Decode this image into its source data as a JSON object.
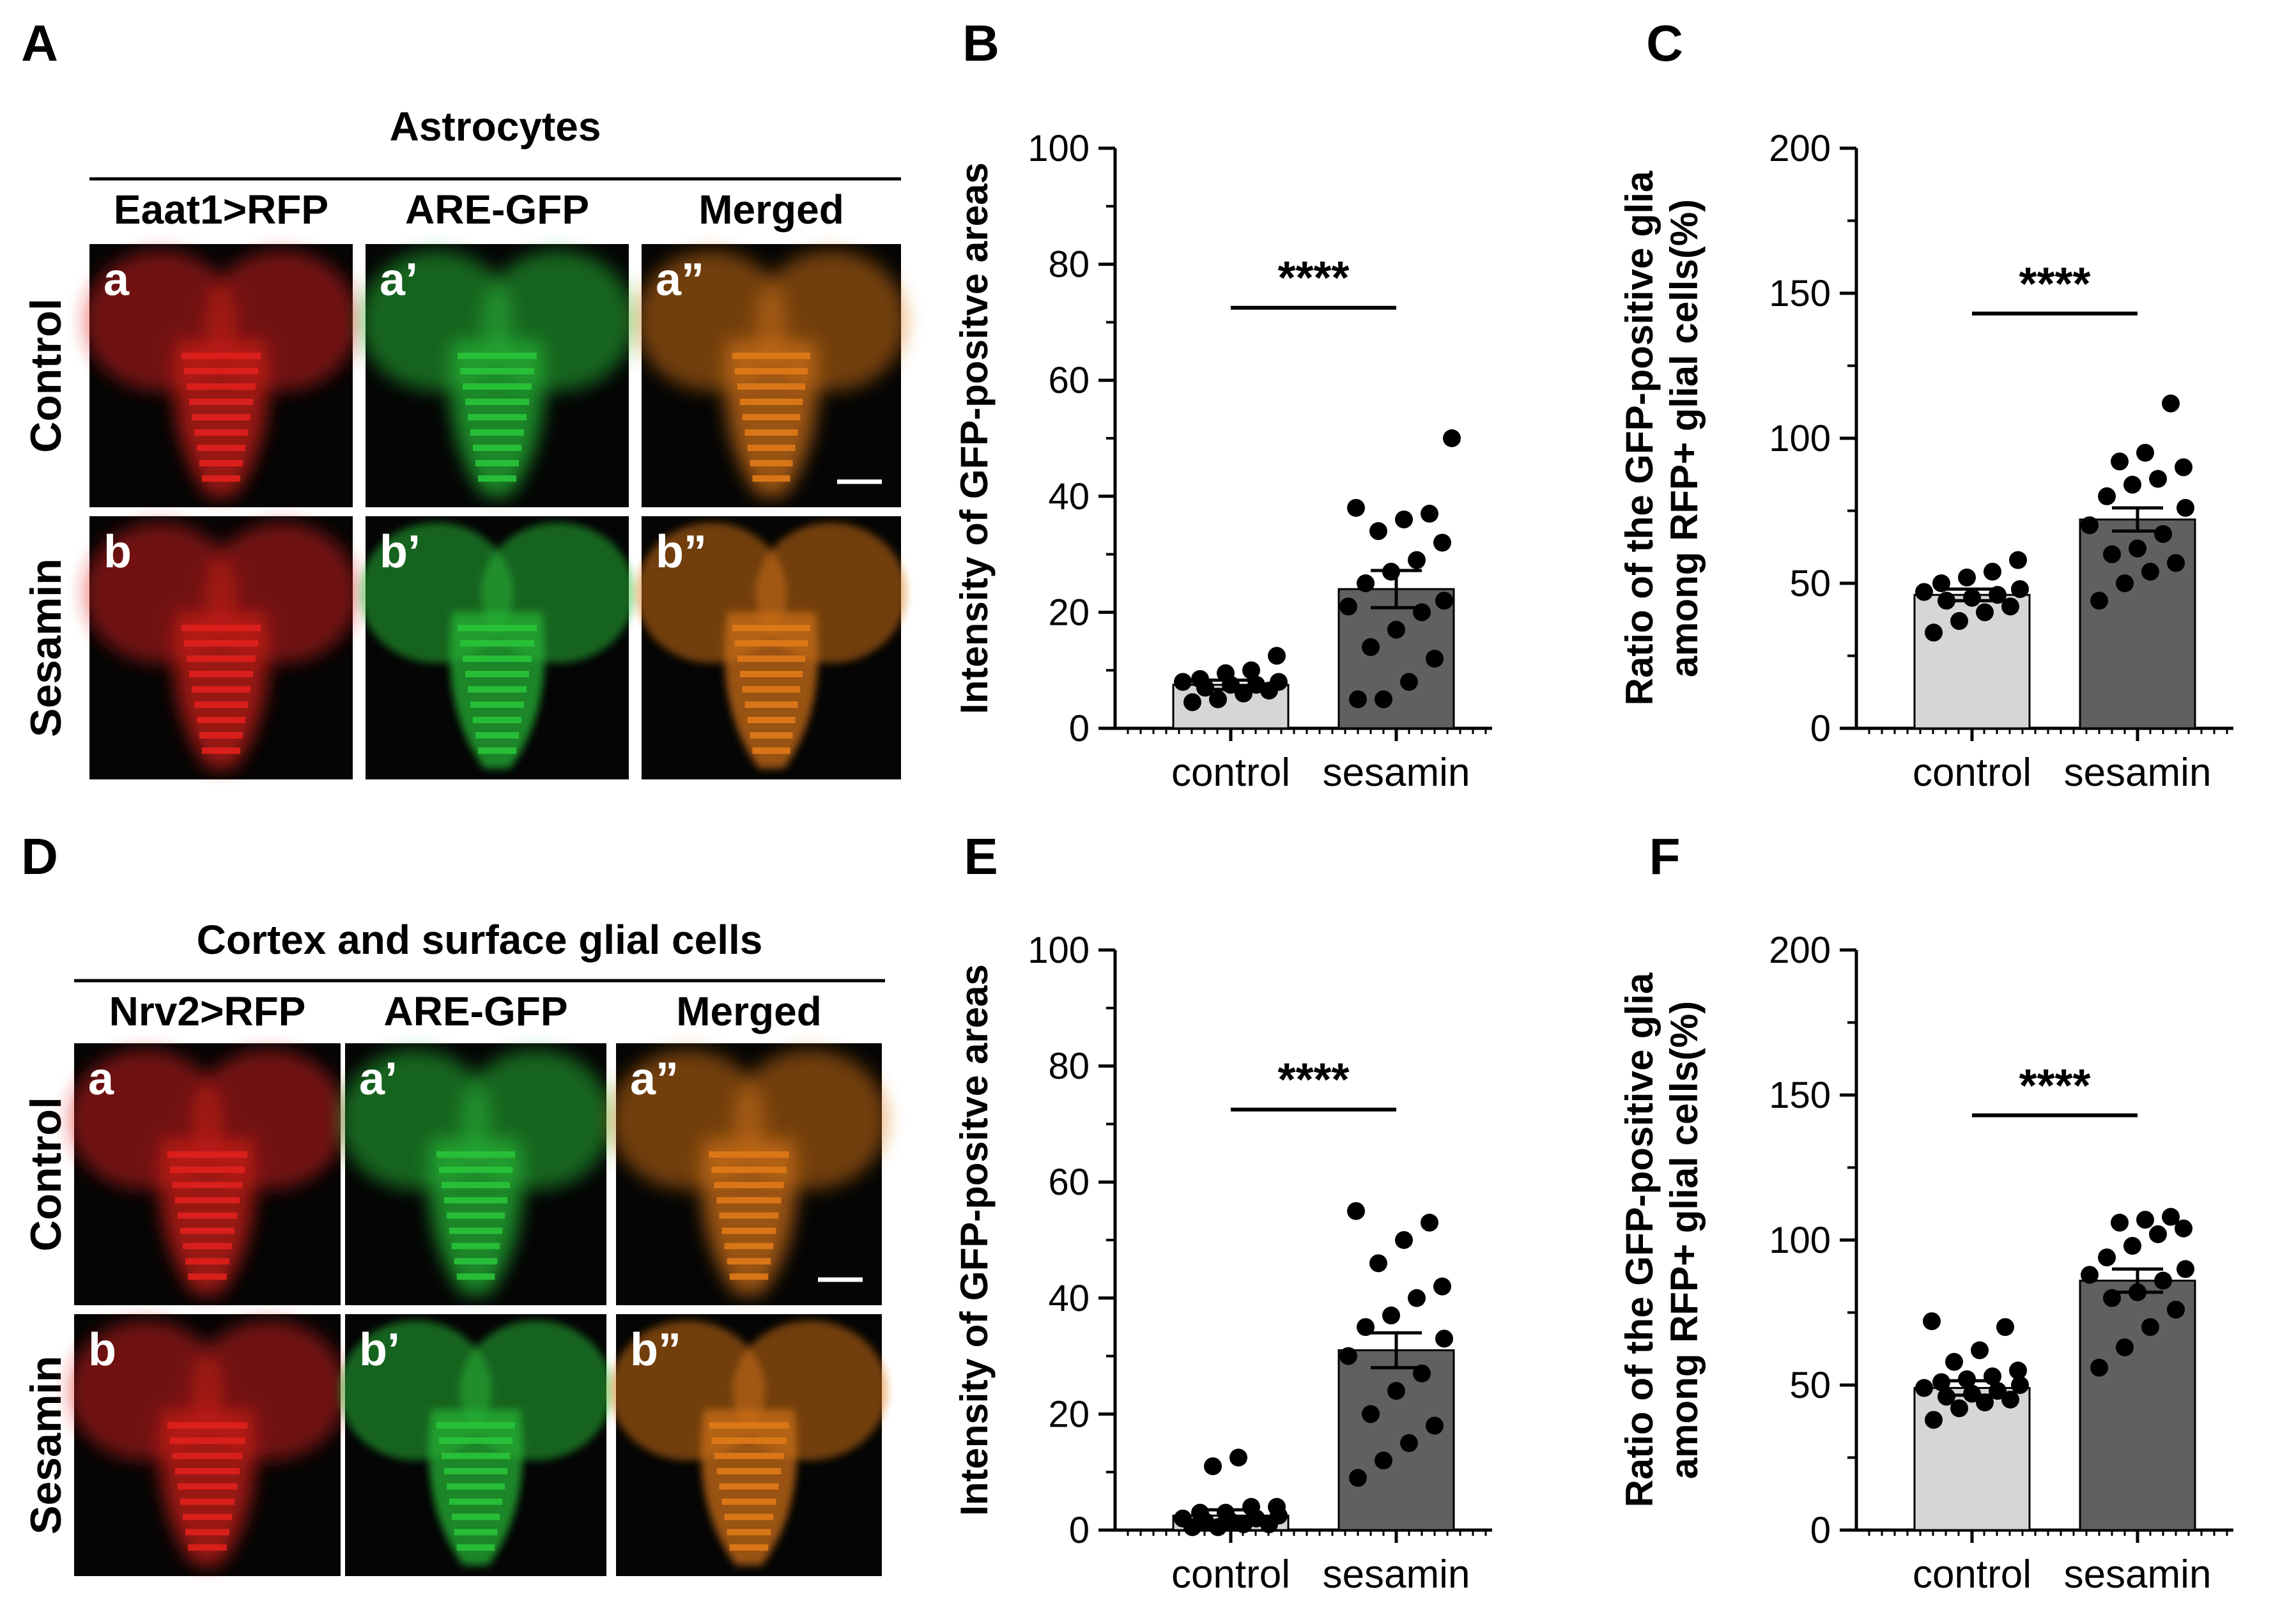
{
  "panels": [
    {
      "letter": "A",
      "title": "Astrocytes",
      "columns": [
        "Eaat1>RFP",
        "ARE-GFP",
        "Merged"
      ],
      "rows": [
        "Control",
        "Sesamin"
      ],
      "cell_labels": [
        [
          "a",
          "a’",
          "a”"
        ],
        [
          "b",
          "b’",
          "b”"
        ]
      ],
      "channel_colors": [
        "#e0201c",
        "#29c43a",
        "#e07a18"
      ]
    },
    {
      "letter": "D",
      "title": "Cortex and surface glial cells",
      "columns": [
        "Nrv2>RFP",
        "ARE-GFP",
        "Merged"
      ],
      "rows": [
        "Control",
        "Sesamin"
      ],
      "cell_labels": [
        [
          "a",
          "a’",
          "a”"
        ],
        [
          "b",
          "b’",
          "b”"
        ]
      ],
      "channel_colors": [
        "#e0201c",
        "#29c43a",
        "#e07a18"
      ]
    }
  ],
  "chart_data": [
    {
      "panel": "B",
      "type": "bar",
      "categories": [
        "control",
        "sesamin"
      ],
      "ylabel": "Intensity of GFP-positve areas",
      "ylim": [
        0,
        100
      ],
      "yticks": [
        0,
        20,
        40,
        60,
        80,
        100
      ],
      "means": [
        7.5,
        24
      ],
      "sem": [
        0.8,
        3.2
      ],
      "significance": "****",
      "points": [
        [
          4.5,
          5,
          6,
          6.5,
          7,
          7.5,
          7.5,
          8,
          8,
          8.5,
          9.5,
          10,
          12.5
        ],
        [
          5,
          5,
          8,
          12,
          14,
          17,
          20,
          21,
          22,
          25,
          27,
          29,
          32,
          34,
          36,
          37,
          38,
          50
        ]
      ]
    },
    {
      "panel": "C",
      "type": "bar",
      "categories": [
        "control",
        "sesamin"
      ],
      "ylabel": "Ratio of the GFP-positive glia among RFP+ glial cells(%)",
      "ylim": [
        0,
        200
      ],
      "yticks": [
        0,
        50,
        100,
        150,
        200
      ],
      "means": [
        46,
        72
      ],
      "sem": [
        2,
        4
      ],
      "significance": "****",
      "points": [
        [
          33,
          37,
          40,
          42,
          44,
          45,
          46,
          47,
          48,
          50,
          52,
          54,
          58
        ],
        [
          44,
          50,
          54,
          57,
          60,
          62,
          67,
          70,
          76,
          80,
          84,
          86,
          90,
          92,
          95,
          112
        ]
      ]
    },
    {
      "panel": "E",
      "type": "bar",
      "categories": [
        "control",
        "sesamin"
      ],
      "ylabel": "Intensity of GFP-positve areas",
      "ylim": [
        0,
        100
      ],
      "yticks": [
        0,
        20,
        40,
        60,
        80,
        100
      ],
      "means": [
        2.5,
        31
      ],
      "sem": [
        1,
        3
      ],
      "significance": "****",
      "points": [
        [
          0.5,
          0.5,
          1,
          1,
          1.5,
          1.5,
          2,
          2,
          2.5,
          3,
          3,
          4,
          4,
          11,
          12.5
        ],
        [
          9,
          12,
          15,
          18,
          20,
          24,
          27,
          30,
          33,
          35,
          37,
          40,
          42,
          46,
          50,
          53,
          55
        ]
      ]
    },
    {
      "panel": "F",
      "type": "bar",
      "categories": [
        "control",
        "sesamin"
      ],
      "ylabel": "Ratio of the GFP-positive glia among RFP+ glial cells(%)",
      "ylim": [
        0,
        200
      ],
      "yticks": [
        0,
        50,
        100,
        150,
        200
      ],
      "means": [
        49,
        86
      ],
      "sem": [
        2.5,
        4
      ],
      "significance": "****",
      "points": [
        [
          38,
          42,
          44,
          45,
          46,
          47,
          48,
          49,
          50,
          51,
          52,
          53,
          55,
          58,
          62,
          70,
          72
        ],
        [
          56,
          63,
          70,
          76,
          80,
          82,
          86,
          88,
          90,
          94,
          98,
          102,
          104,
          106,
          107,
          108
        ]
      ]
    }
  ]
}
